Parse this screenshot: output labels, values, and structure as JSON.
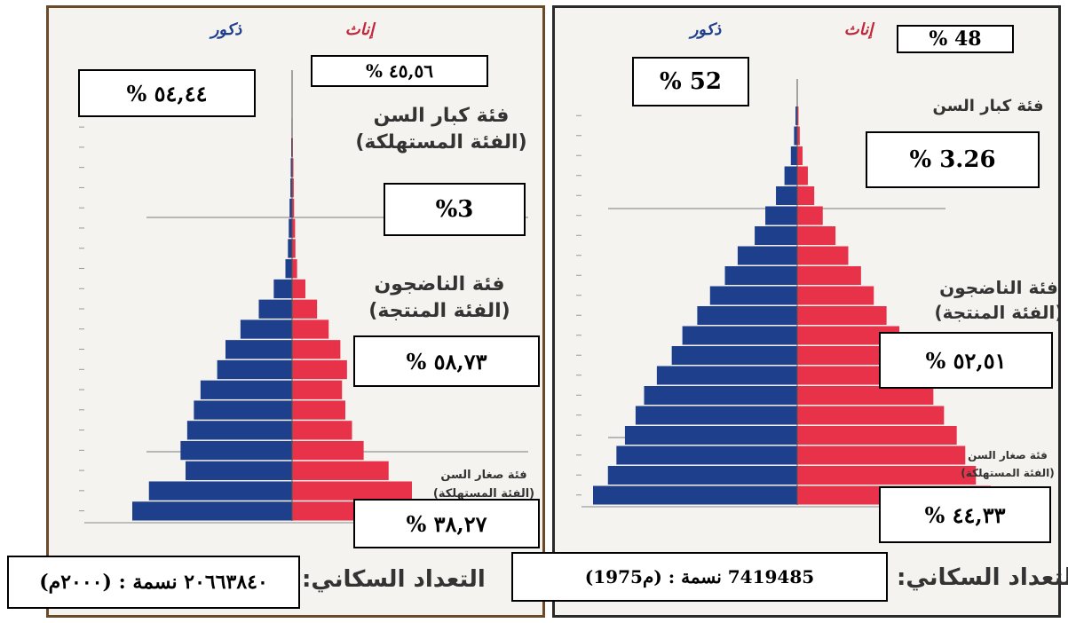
{
  "colors": {
    "male": "#1e3f8c",
    "female": "#e8324a",
    "frame_left": "#6b4a2a",
    "frame_right": "#2a2a2a"
  },
  "chart_data": [
    {
      "type": "bar",
      "subtype": "population-pyramid",
      "male_label": "ذكور",
      "female_label": "إناث",
      "left_box_percent": "% ٥٤,٤٤",
      "right_box_percent": "% ٤٥,٥٦",
      "groups": [
        {
          "name": "فئة كبار السن",
          "subtitle": "(الفئة المستهلكة)",
          "percent": "%3"
        },
        {
          "name": "فئة الناضجون",
          "subtitle": "(الفئة المنتجة)",
          "percent": "% ٥٨,٧٣"
        },
        {
          "name": "فئة صغار السن",
          "subtitle": "(الفئة المستهلكة)",
          "percent": "% ٣٨,٢٧"
        }
      ],
      "census_label": "التعداد السكاني:",
      "census_value": "(٢٠٠٠م) : ٢٠٦٦٣٨٤٠ نسمة",
      "male": [
        9.6,
        8.6,
        6.4,
        6.7,
        6.3,
        5.9,
        5.5,
        4.5,
        4.0,
        3.1,
        2.0,
        1.1,
        0.4,
        0.25,
        0.2,
        0.15,
        0.1,
        0.08,
        0.05,
        0.03,
        0.02
      ],
      "female": [
        7.9,
        7.2,
        5.8,
        4.3,
        3.6,
        3.2,
        3.0,
        3.3,
        2.9,
        2.2,
        1.5,
        0.8,
        0.3,
        0.2,
        0.18,
        0.12,
        0.1,
        0.08,
        0.05,
        0.03,
        0.02
      ]
    },
    {
      "type": "bar",
      "subtype": "population-pyramid",
      "male_label": "ذكور",
      "female_label": "إناث",
      "left_box_percent": "% 52",
      "right_box_percent": "% 48",
      "groups": [
        {
          "name": "فئة كبار السن",
          "subtitle": "",
          "percent": "% 3.26"
        },
        {
          "name": "فئة الناضجون",
          "subtitle": "(الفئة المنتجة)",
          "percent": "% ٥٢,٥١"
        },
        {
          "name": "فئة صغار السن",
          "subtitle": "(الفئة المستهلكة)",
          "percent": "% ٤٤,٣٣"
        }
      ],
      "census_label": "التعداد السكاني:",
      "census_value": "(1975م) : 7419485 نسمة",
      "male": [
        9.6,
        8.9,
        8.5,
        8.1,
        7.6,
        7.2,
        6.6,
        5.9,
        5.4,
        4.7,
        4.1,
        3.4,
        2.8,
        2.0,
        1.5,
        1.0,
        0.6,
        0.3,
        0.15,
        0.08
      ],
      "female": [
        9.1,
        8.4,
        7.9,
        7.5,
        6.9,
        6.4,
        5.9,
        5.3,
        4.8,
        4.2,
        3.6,
        3.0,
        2.4,
        1.8,
        1.2,
        0.8,
        0.5,
        0.25,
        0.12,
        0.06
      ]
    }
  ]
}
